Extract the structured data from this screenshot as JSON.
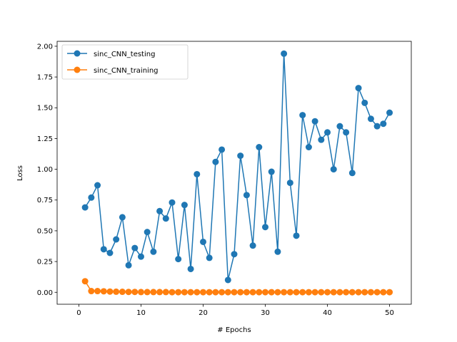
{
  "chart_data": {
    "type": "line",
    "title": "",
    "xlabel": "# Epochs",
    "ylabel": "Loss",
    "xlim": [
      -3.5,
      53.5
    ],
    "ylim": [
      -0.097,
      2.04
    ],
    "xticks": [
      0,
      10,
      20,
      30,
      40,
      50
    ],
    "yticks": [
      0.0,
      0.25,
      0.5,
      0.75,
      1.0,
      1.25,
      1.5,
      1.75,
      2.0
    ],
    "xtick_labels": [
      "0",
      "10",
      "20",
      "30",
      "40",
      "50"
    ],
    "ytick_labels": [
      "0.00",
      "0.25",
      "0.50",
      "0.75",
      "1.00",
      "1.25",
      "1.50",
      "1.75",
      "2.00"
    ],
    "grid": false,
    "legend_position": "top-left",
    "x": [
      1,
      2,
      3,
      4,
      5,
      6,
      7,
      8,
      9,
      10,
      11,
      12,
      13,
      14,
      15,
      16,
      17,
      18,
      19,
      20,
      21,
      22,
      23,
      24,
      25,
      26,
      27,
      28,
      29,
      30,
      31,
      32,
      33,
      34,
      35,
      36,
      37,
      38,
      39,
      40,
      41,
      42,
      43,
      44,
      45,
      46,
      47,
      48,
      49,
      50
    ],
    "series": [
      {
        "name": "sinc_CNN_testing",
        "color": "#1f77b4",
        "values": [
          0.69,
          0.77,
          0.87,
          0.35,
          0.32,
          0.43,
          0.61,
          0.22,
          0.36,
          0.29,
          0.49,
          0.33,
          0.66,
          0.6,
          0.73,
          0.27,
          0.71,
          0.19,
          0.96,
          0.41,
          0.28,
          1.06,
          1.16,
          0.1,
          0.31,
          1.11,
          0.79,
          0.38,
          1.18,
          0.53,
          0.98,
          0.33,
          1.94,
          0.89,
          0.46,
          1.44,
          1.18,
          1.39,
          1.24,
          1.3,
          1.0,
          1.35,
          1.3,
          0.97,
          1.66,
          1.54,
          1.41,
          1.35,
          1.37,
          1.46
        ]
      },
      {
        "name": "sinc_CNN_training",
        "color": "#ff7f0e",
        "values": [
          0.09,
          0.01,
          0.01,
          0.008,
          0.006,
          0.005,
          0.004,
          0.003,
          0.003,
          0.002,
          0.002,
          0.002,
          0.002,
          0.002,
          0.001,
          0.001,
          0.001,
          0.001,
          0.001,
          0.001,
          0.001,
          0.001,
          0.001,
          0.001,
          0.001,
          0.001,
          0.001,
          0.001,
          0.001,
          0.001,
          0.001,
          0.001,
          0.001,
          0.001,
          0.001,
          0.001,
          0.001,
          0.001,
          0.001,
          0.001,
          0.001,
          0.001,
          0.001,
          0.001,
          0.001,
          0.001,
          0.001,
          0.001,
          0.001,
          0.001
        ]
      }
    ]
  }
}
